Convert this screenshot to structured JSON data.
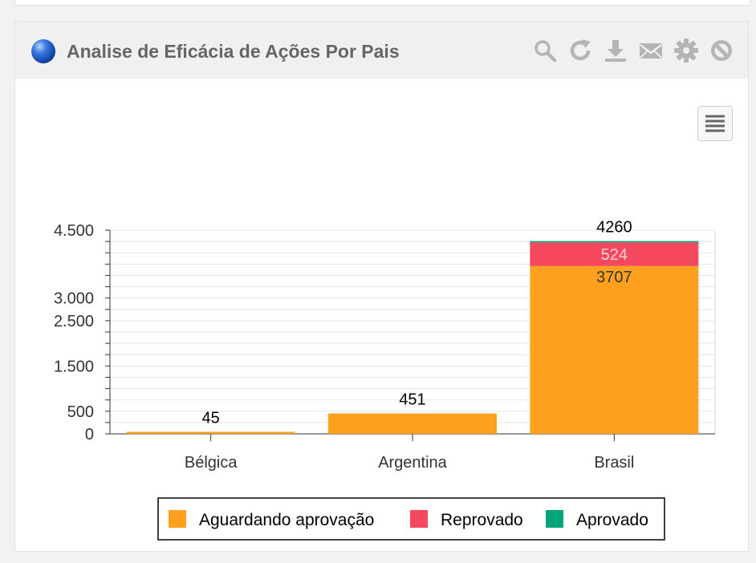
{
  "widget": {
    "title": "Analise de Eficácia de Ações Por Pais",
    "toolbar": [
      "search-icon",
      "refresh-icon",
      "download-icon",
      "mail-icon",
      "gear-icon",
      "block-icon"
    ]
  },
  "colors": {
    "aguardando": "#ffa01e",
    "reprovado": "#f5485f",
    "aprovado": "#00a57a"
  },
  "chart_data": {
    "type": "bar",
    "stacked": true,
    "categories": [
      "Bélgica",
      "Argentina",
      "Brasil"
    ],
    "series": [
      {
        "name": "Aguardando aprovação",
        "values": [
          45,
          451,
          3707
        ],
        "color": "#ffa01e"
      },
      {
        "name": "Reprovado",
        "values": [
          0,
          0,
          524
        ],
        "color": "#f5485f"
      },
      {
        "name": "Aprovado",
        "values": [
          0,
          0,
          29
        ],
        "color": "#00a57a"
      }
    ],
    "totals": [
      45,
      451,
      4260
    ],
    "data_labels": [
      {
        "category": "Bélgica",
        "text": "45"
      },
      {
        "category": "Argentina",
        "text": "451"
      },
      {
        "category": "Brasil",
        "text": "4260"
      },
      {
        "category": "Brasil",
        "text": "524"
      },
      {
        "category": "Brasil",
        "text": "3707"
      }
    ],
    "y_tick_labels": [
      {
        "value": 0,
        "label": "0"
      },
      {
        "value": 500,
        "label": "500"
      },
      {
        "value": 1500,
        "label": "1.500"
      },
      {
        "value": 2500,
        "label": "2.500"
      },
      {
        "value": 3000,
        "label": "3.000"
      },
      {
        "value": 4500,
        "label": "4.500"
      }
    ],
    "ylim": [
      0,
      4500
    ],
    "title": "",
    "xlabel": "",
    "ylabel": "",
    "grid": true,
    "legend": "bottom-center"
  }
}
